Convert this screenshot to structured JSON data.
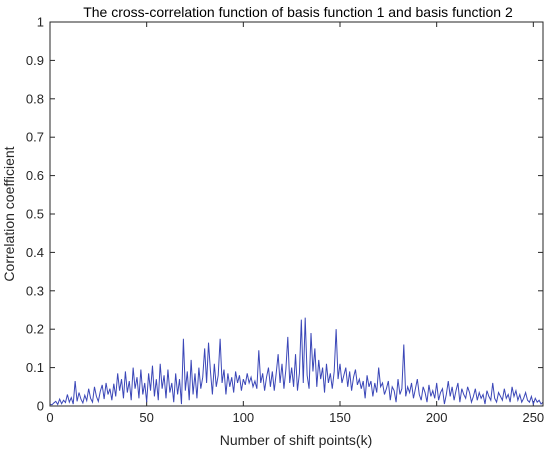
{
  "chart_data": {
    "type": "line",
    "title": "The cross-correlation function of basis function 1 and basis function 2",
    "xlabel": "Number of shift points(k)",
    "ylabel": "Correlation coefficient",
    "xlim": [
      0,
      255
    ],
    "ylim": [
      0,
      1
    ],
    "xticks": [
      "0",
      "50",
      "100",
      "150",
      "200",
      "250"
    ],
    "yticks": [
      "0",
      "0.1",
      "0.2",
      "0.3",
      "0.4",
      "0.5",
      "0.6",
      "0.7",
      "0.8",
      "0.9",
      "1"
    ],
    "grid": false,
    "series": [
      {
        "color": "#3b47b8",
        "x": [
          0,
          1,
          2,
          3,
          4,
          5,
          6,
          7,
          8,
          9,
          10,
          11,
          12,
          13,
          14,
          15,
          16,
          17,
          18,
          19,
          20,
          21,
          22,
          23,
          24,
          25,
          26,
          27,
          28,
          29,
          30,
          31,
          32,
          33,
          34,
          35,
          36,
          37,
          38,
          39,
          40,
          41,
          42,
          43,
          44,
          45,
          46,
          47,
          48,
          49,
          50,
          51,
          52,
          53,
          54,
          55,
          56,
          57,
          58,
          59,
          60,
          61,
          62,
          63,
          64,
          65,
          66,
          67,
          68,
          69,
          70,
          71,
          72,
          73,
          74,
          75,
          76,
          77,
          78,
          79,
          80,
          81,
          82,
          83,
          84,
          85,
          86,
          87,
          88,
          89,
          90,
          91,
          92,
          93,
          94,
          95,
          96,
          97,
          98,
          99,
          100,
          101,
          102,
          103,
          104,
          105,
          106,
          107,
          108,
          109,
          110,
          111,
          112,
          113,
          114,
          115,
          116,
          117,
          118,
          119,
          120,
          121,
          122,
          123,
          124,
          125,
          126,
          127,
          128,
          129,
          130,
          131,
          132,
          133,
          134,
          135,
          136,
          137,
          138,
          139,
          140,
          141,
          142,
          143,
          144,
          145,
          146,
          147,
          148,
          149,
          150,
          151,
          152,
          153,
          154,
          155,
          156,
          157,
          158,
          159,
          160,
          161,
          162,
          163,
          164,
          165,
          166,
          167,
          168,
          169,
          170,
          171,
          172,
          173,
          174,
          175,
          176,
          177,
          178,
          179,
          180,
          181,
          182,
          183,
          184,
          185,
          186,
          187,
          188,
          189,
          190,
          191,
          192,
          193,
          194,
          195,
          196,
          197,
          198,
          199,
          200,
          201,
          202,
          203,
          204,
          205,
          206,
          207,
          208,
          209,
          210,
          211,
          212,
          213,
          214,
          215,
          216,
          217,
          218,
          219,
          220,
          221,
          222,
          223,
          224,
          225,
          226,
          227,
          228,
          229,
          230,
          231,
          232,
          233,
          234,
          235,
          236,
          237,
          238,
          239,
          240,
          241,
          242,
          243,
          244,
          245,
          246,
          247,
          248,
          249,
          250,
          251,
          252,
          253,
          254,
          255
        ],
        "y": [
          0.005,
          0.003,
          0.008,
          0.012,
          0.004,
          0.018,
          0.006,
          0.015,
          0.009,
          0.03,
          0.01,
          0.022,
          0.005,
          0.065,
          0.012,
          0.035,
          0.018,
          0.008,
          0.028,
          0.014,
          0.045,
          0.02,
          0.01,
          0.05,
          0.025,
          0.012,
          0.038,
          0.055,
          0.018,
          0.06,
          0.03,
          0.045,
          0.015,
          0.058,
          0.025,
          0.085,
          0.04,
          0.07,
          0.02,
          0.09,
          0.035,
          0.065,
          0.015,
          0.1,
          0.045,
          0.075,
          0.02,
          0.095,
          0.03,
          0.06,
          0.01,
          0.085,
          0.04,
          0.105,
          0.025,
          0.07,
          0.015,
          0.11,
          0.045,
          0.08,
          0.02,
          0.095,
          0.035,
          0.06,
          0.01,
          0.085,
          0.03,
          0.07,
          0.005,
          0.175,
          0.04,
          0.09,
          0.015,
          0.12,
          0.03,
          0.085,
          0.02,
          0.1,
          0.045,
          0.075,
          0.15,
          0.06,
          0.165,
          0.09,
          0.03,
          0.11,
          0.05,
          0.08,
          0.175,
          0.06,
          0.095,
          0.03,
          0.085,
          0.05,
          0.075,
          0.035,
          0.09,
          0.06,
          0.08,
          0.04,
          0.07,
          0.055,
          0.085,
          0.06,
          0.075,
          0.05,
          0.065,
          0.045,
          0.145,
          0.06,
          0.085,
          0.04,
          0.075,
          0.1,
          0.05,
          0.09,
          0.04,
          0.085,
          0.135,
          0.06,
          0.11,
          0.045,
          0.095,
          0.18,
          0.06,
          0.1,
          0.05,
          0.135,
          0.04,
          0.085,
          0.225,
          0.06,
          0.23,
          0.08,
          0.045,
          0.19,
          0.09,
          0.15,
          0.05,
          0.12,
          0.07,
          0.1,
          0.035,
          0.11,
          0.06,
          0.085,
          0.045,
          0.09,
          0.2,
          0.07,
          0.11,
          0.06,
          0.08,
          0.1,
          0.05,
          0.09,
          0.04,
          0.075,
          0.095,
          0.055,
          0.07,
          0.045,
          0.065,
          0.02,
          0.08,
          0.05,
          0.065,
          0.025,
          0.06,
          0.035,
          0.1,
          0.05,
          0.06,
          0.03,
          0.045,
          0.065,
          0.015,
          0.05,
          0.04,
          0.01,
          0.07,
          0.03,
          0.045,
          0.16,
          0.025,
          0.05,
          0.035,
          0.06,
          0.02,
          0.045,
          0.07,
          0.03,
          0.015,
          0.05,
          0.035,
          0.01,
          0.055,
          0.025,
          0.04,
          0.02,
          0.06,
          0.015,
          0.035,
          0.045,
          0.005,
          0.03,
          0.065,
          0.025,
          0.05,
          0.015,
          0.04,
          0.06,
          0.01,
          0.045,
          0.03,
          0.02,
          0.05,
          0.035,
          0.01,
          0.025,
          0.045,
          0.015,
          0.035,
          0.02,
          0.03,
          0.005,
          0.04,
          0.025,
          0.015,
          0.06,
          0.02,
          0.01,
          0.035,
          0.025,
          0.015,
          0.045,
          0.02,
          0.03,
          0.01,
          0.05,
          0.025,
          0.04,
          0.015,
          0.03,
          0.01,
          0.02,
          0.035,
          0.015,
          0.01,
          0.025,
          0.005,
          0.02,
          0.01,
          0.015,
          0.005,
          0.01
        ]
      }
    ]
  }
}
